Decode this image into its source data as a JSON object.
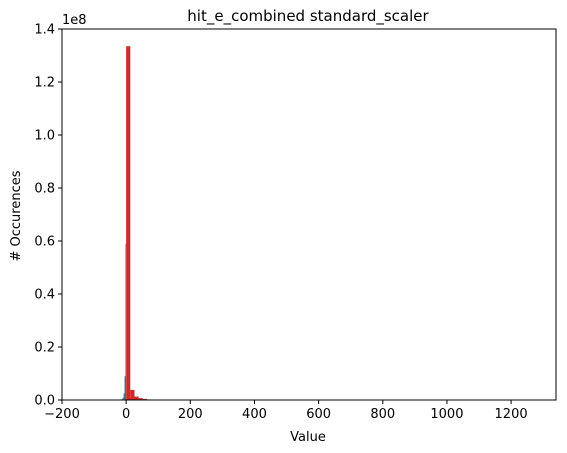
{
  "chart_data": {
    "type": "bar",
    "title": "hit_e_combined standard_scaler",
    "xlabel": "Value",
    "ylabel": "# Occurences",
    "y_offset_label": "1e8",
    "xlim": [
      -200,
      1340
    ],
    "ylim": [
      0,
      140000000
    ],
    "x_ticks": [
      {
        "value": -200,
        "label": "−200"
      },
      {
        "value": 0,
        "label": "0"
      },
      {
        "value": 200,
        "label": "200"
      },
      {
        "value": 400,
        "label": "400"
      },
      {
        "value": 600,
        "label": "600"
      },
      {
        "value": 800,
        "label": "800"
      },
      {
        "value": 1000,
        "label": "1000"
      },
      {
        "value": 1200,
        "label": "1200"
      }
    ],
    "y_ticks": [
      {
        "value": 0,
        "label": "0.0"
      },
      {
        "value": 20000000,
        "label": "0.2"
      },
      {
        "value": 40000000,
        "label": "0.4"
      },
      {
        "value": 60000000,
        "label": "0.6"
      },
      {
        "value": 80000000,
        "label": "0.8"
      },
      {
        "value": 100000000,
        "label": "1.0"
      },
      {
        "value": 120000000,
        "label": "1.2"
      },
      {
        "value": 140000000,
        "label": "1.4"
      }
    ],
    "grid": false,
    "series": [
      {
        "color": "#2a7d7b",
        "bins": [
          {
            "x0": -14,
            "x1": -11,
            "y": 300000
          },
          {
            "x0": -11,
            "x1": -8,
            "y": 900000
          },
          {
            "x0": -8,
            "x1": -5,
            "y": 2500000
          },
          {
            "x0": -5,
            "x1": -2,
            "y": 9000000
          },
          {
            "x0": -2,
            "x1": 0,
            "y": 59000000
          }
        ]
      },
      {
        "color": "#d62728",
        "bins": [
          {
            "x0": 0,
            "x1": 13,
            "y": 133500000
          },
          {
            "x0": 13,
            "x1": 26,
            "y": 3800000
          },
          {
            "x0": 26,
            "x1": 39,
            "y": 1300000
          },
          {
            "x0": 39,
            "x1": 52,
            "y": 700000
          },
          {
            "x0": 52,
            "x1": 65,
            "y": 400000
          },
          {
            "x0": 65,
            "x1": 78,
            "y": 200000
          }
        ]
      }
    ]
  }
}
